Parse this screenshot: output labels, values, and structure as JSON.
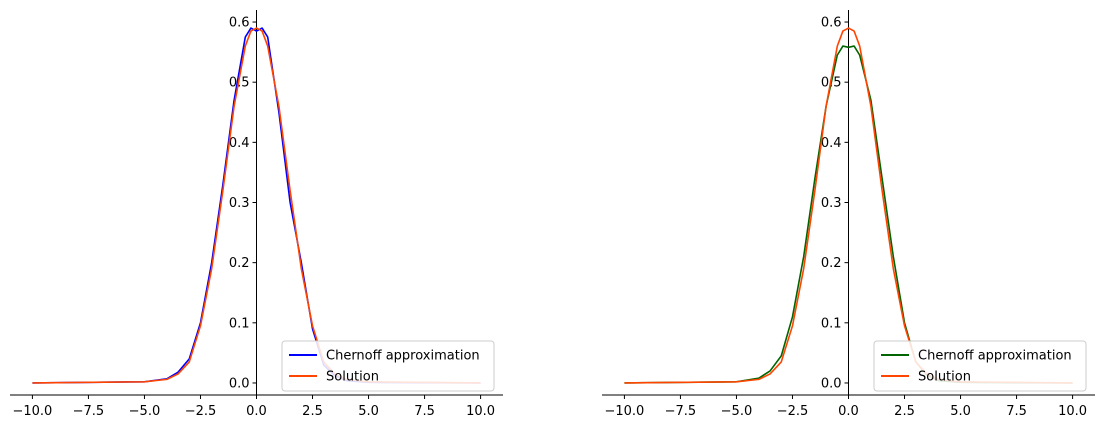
{
  "chart_data": [
    {
      "type": "line",
      "title": "",
      "xlabel": "",
      "ylabel": "",
      "xlim": [
        -11,
        11
      ],
      "ylim": [
        -0.02,
        0.62
      ],
      "xticks": [
        -10,
        -7.5,
        -5,
        -2.5,
        0,
        2.5,
        5,
        7.5,
        10
      ],
      "xtick_labels": [
        "−10.0",
        "−7.5",
        "−5.0",
        "−2.5",
        "0.0",
        "2.5",
        "5.0",
        "7.5",
        "10.0"
      ],
      "yticks": [
        0,
        0.1,
        0.2,
        0.3,
        0.4,
        0.5,
        0.6
      ],
      "ytick_labels": [
        "0.0",
        "0.1",
        "0.2",
        "0.3",
        "0.4",
        "0.5",
        "0.6"
      ],
      "legend_position": "bottom-right",
      "grid": false,
      "series": [
        {
          "name": "Chernoff approximation",
          "color": "#0000ff",
          "x": [
            -10,
            -5,
            -4,
            -3.5,
            -3,
            -2.5,
            -2,
            -1.5,
            -1,
            -0.5,
            -0.25,
            0,
            0.25,
            0.5,
            1,
            1.5,
            2,
            2.5,
            3,
            3.5,
            4,
            5,
            10
          ],
          "y": [
            0,
            0.002,
            0.007,
            0.018,
            0.04,
            0.1,
            0.2,
            0.33,
            0.47,
            0.575,
            0.59,
            0.585,
            0.59,
            0.575,
            0.45,
            0.3,
            0.2,
            0.09,
            0.03,
            0.012,
            0.004,
            0.001,
            0
          ]
        },
        {
          "name": "Solution",
          "color": "#ff4500",
          "x": [
            -10,
            -5,
            -4,
            -3.5,
            -3,
            -2.5,
            -2,
            -1.5,
            -1,
            -0.5,
            -0.25,
            0,
            0.25,
            0.5,
            1,
            1.5,
            2,
            2.5,
            3,
            3.5,
            4,
            5,
            10
          ],
          "y": [
            0,
            0.002,
            0.006,
            0.015,
            0.035,
            0.095,
            0.19,
            0.32,
            0.46,
            0.56,
            0.585,
            0.59,
            0.585,
            0.56,
            0.46,
            0.32,
            0.19,
            0.095,
            0.035,
            0.015,
            0.006,
            0.002,
            0
          ]
        }
      ]
    },
    {
      "type": "line",
      "title": "",
      "xlabel": "",
      "ylabel": "",
      "xlim": [
        -11,
        11
      ],
      "ylim": [
        -0.02,
        0.62
      ],
      "xticks": [
        -10,
        -7.5,
        -5,
        -2.5,
        0,
        2.5,
        5,
        7.5,
        10
      ],
      "xtick_labels": [
        "−10.0",
        "−7.5",
        "−5.0",
        "−2.5",
        "0.0",
        "2.5",
        "5.0",
        "7.5",
        "10.0"
      ],
      "yticks": [
        0,
        0.1,
        0.2,
        0.3,
        0.4,
        0.5,
        0.6
      ],
      "ytick_labels": [
        "0.0",
        "0.1",
        "0.2",
        "0.3",
        "0.4",
        "0.5",
        "0.6"
      ],
      "legend_position": "bottom-right",
      "grid": false,
      "series": [
        {
          "name": "Chernoff approximation",
          "color": "#006400",
          "x": [
            -10,
            -5,
            -4,
            -3.5,
            -3,
            -2.5,
            -2,
            -1.5,
            -1,
            -0.5,
            -0.25,
            0,
            0.25,
            0.5,
            1,
            1.5,
            2,
            2.5,
            3,
            3.5,
            4,
            5,
            10
          ],
          "y": [
            0,
            0.002,
            0.008,
            0.02,
            0.045,
            0.11,
            0.21,
            0.34,
            0.46,
            0.545,
            0.56,
            0.558,
            0.56,
            0.545,
            0.47,
            0.34,
            0.21,
            0.1,
            0.035,
            0.013,
            0.004,
            0.001,
            0
          ]
        },
        {
          "name": "Solution",
          "color": "#ff4500",
          "x": [
            -10,
            -5,
            -4,
            -3.5,
            -3,
            -2.5,
            -2,
            -1.5,
            -1,
            -0.5,
            -0.25,
            0,
            0.25,
            0.5,
            1,
            1.5,
            2,
            2.5,
            3,
            3.5,
            4,
            5,
            10
          ],
          "y": [
            0,
            0.002,
            0.006,
            0.015,
            0.035,
            0.095,
            0.19,
            0.32,
            0.46,
            0.56,
            0.585,
            0.59,
            0.585,
            0.56,
            0.46,
            0.32,
            0.19,
            0.095,
            0.035,
            0.015,
            0.006,
            0.002,
            0
          ]
        }
      ]
    }
  ]
}
